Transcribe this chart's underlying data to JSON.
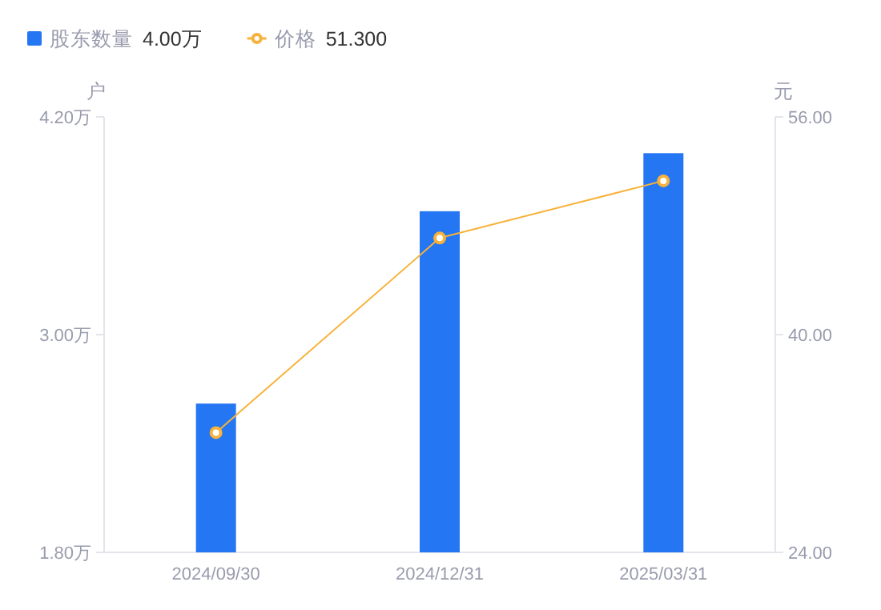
{
  "chart_data": {
    "type": "bar",
    "categories": [
      "2024/09/30",
      "2024/12/31",
      "2025/03/31"
    ],
    "series": [
      {
        "name": "股东数量",
        "color": "#2576f3",
        "values": [
          2.62,
          3.68,
          4.0
        ]
      },
      {
        "name": "价格",
        "type": "line",
        "axis": "y2",
        "color": "#f7b23b",
        "marker": "circle",
        "values": [
          32.8,
          47.1,
          51.3
        ]
      }
    ],
    "ylabel": "户",
    "y2label": "元",
    "ylim": [
      1.8,
      4.2
    ],
    "yticks": [
      {
        "value": 1.8,
        "label": "1.80万"
      },
      {
        "value": 3.0,
        "label": "3.00万"
      },
      {
        "value": 4.2,
        "label": "4.20万"
      }
    ],
    "y2lim": [
      24,
      56
    ],
    "y2ticks": [
      {
        "value": 24,
        "label": "24.00"
      },
      {
        "value": 40,
        "label": "40.00"
      },
      {
        "value": 56,
        "label": "56.00"
      }
    ],
    "legend": "top left",
    "annotations": [
      "4.00万",
      "51.300"
    ]
  }
}
